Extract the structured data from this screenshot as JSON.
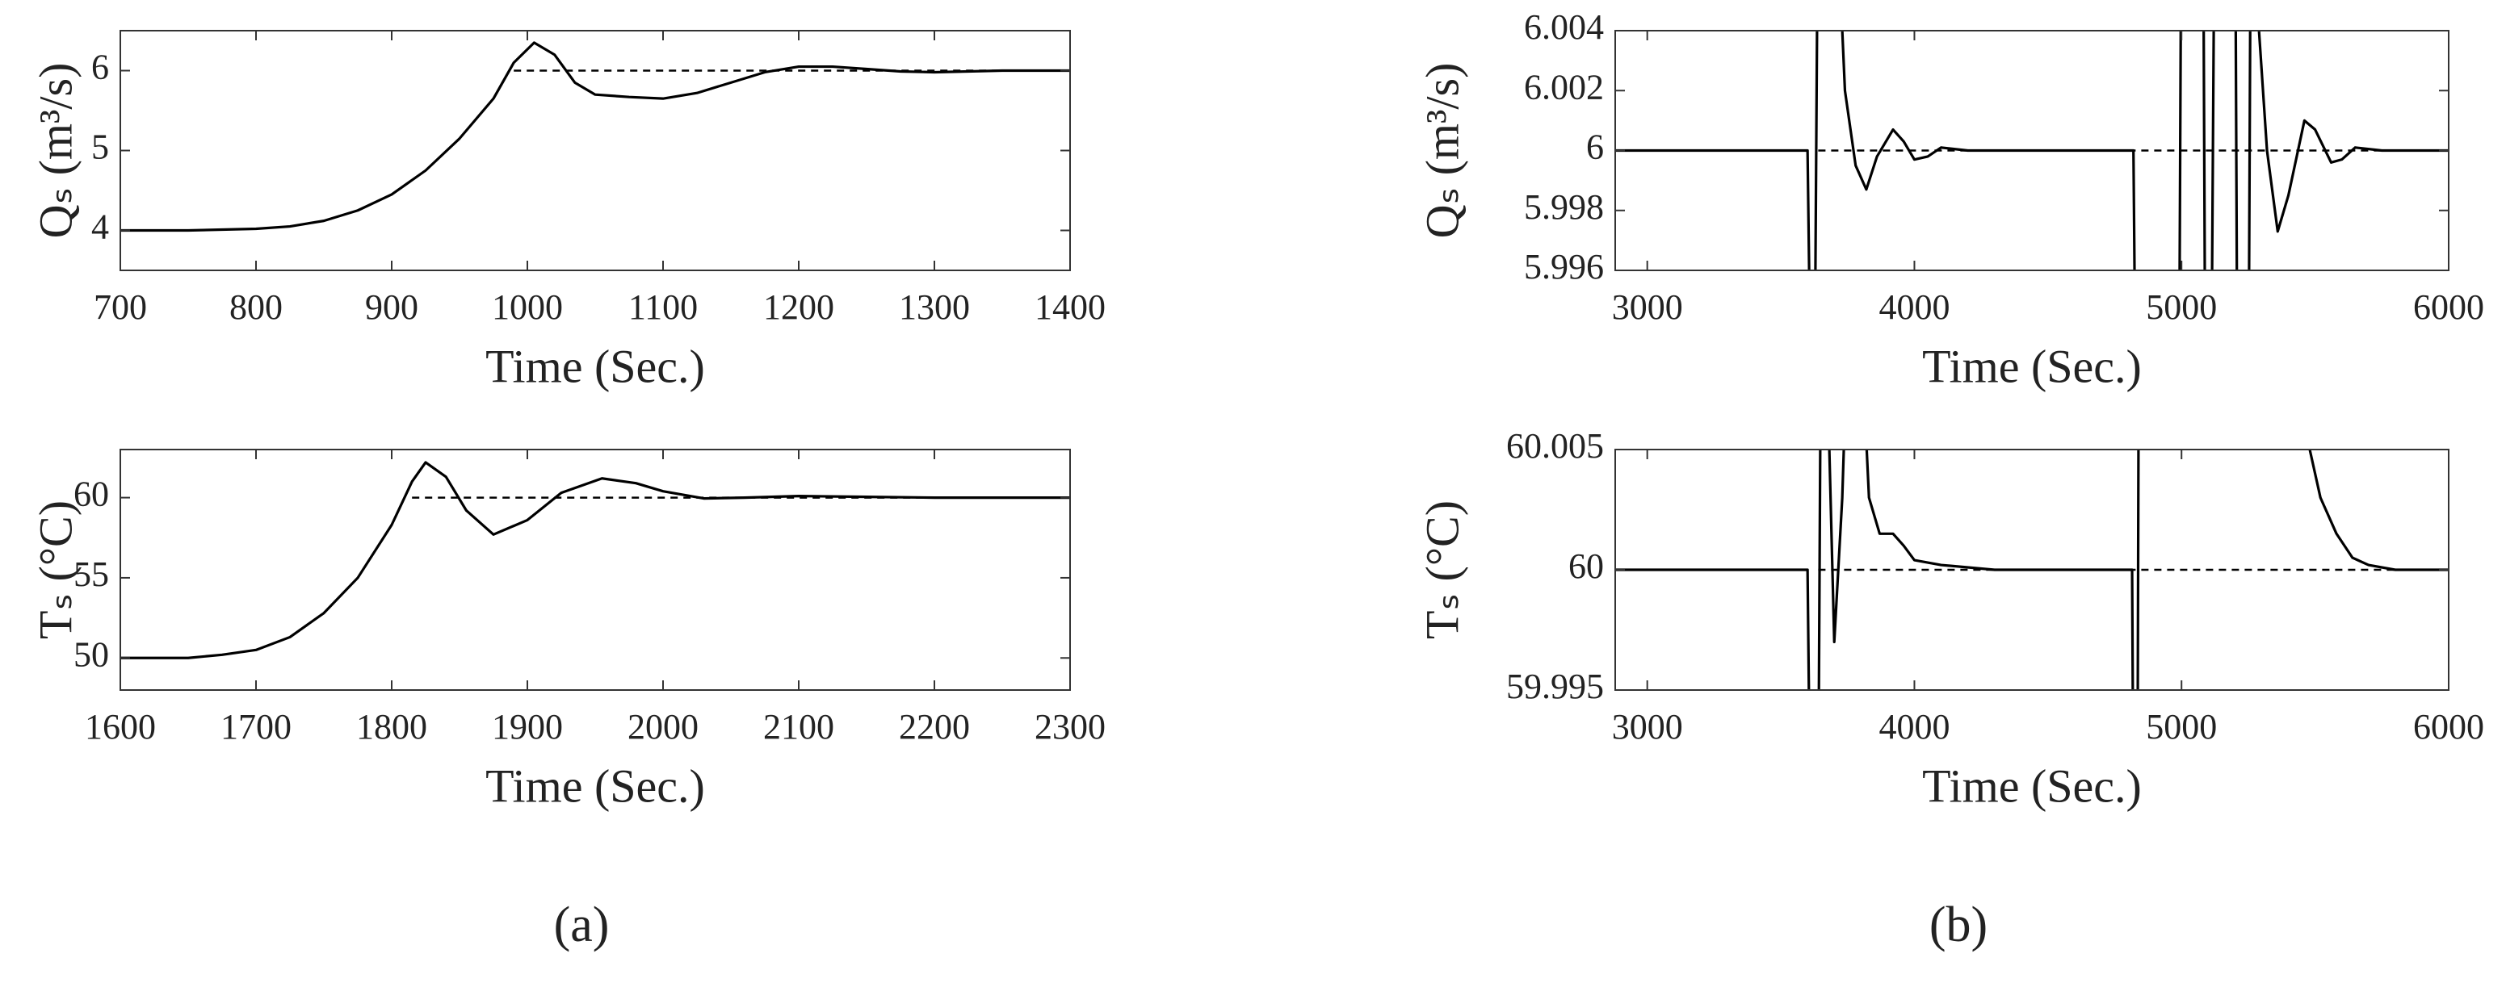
{
  "chart_data": [
    {
      "type": "line",
      "xlabel": "Time (Sec.)",
      "ylabel": "Qₛ (m³/s)",
      "x": [
        700,
        750,
        800,
        825,
        850,
        875,
        900,
        925,
        950,
        975,
        990,
        1005,
        1020,
        1035,
        1050,
        1075,
        1100,
        1125,
        1150,
        1175,
        1200,
        1225,
        1250,
        1275,
        1300,
        1325,
        1350,
        1400
      ],
      "xlim": [
        700,
        1400
      ],
      "xticks": [
        700,
        800,
        900,
        1000,
        1100,
        1200,
        1300,
        1400
      ],
      "ylim": [
        3.5,
        6.5
      ],
      "yticks": [
        4,
        5,
        6
      ],
      "grid": false,
      "series": [
        {
          "color": "#000000",
          "values": [
            4,
            4,
            4.02,
            4.05,
            4.12,
            4.25,
            4.45,
            4.75,
            5.15,
            5.65,
            6.1,
            6.35,
            6.2,
            5.85,
            5.7,
            5.67,
            5.65,
            5.72,
            5.85,
            5.98,
            6.05,
            6.05,
            6.02,
            5.99,
            5.98,
            5.99,
            6,
            6
          ]
        },
        {
          "color": "#000000",
          "dashed": true,
          "values": [
            null,
            null,
            null,
            null,
            null,
            null,
            null,
            null,
            null,
            null,
            6,
            6,
            6,
            6,
            6,
            6,
            6,
            6,
            6,
            6,
            6,
            6,
            6,
            6,
            6,
            6,
            6,
            6
          ]
        }
      ]
    },
    {
      "type": "line",
      "xlabel": "Time (Sec.)",
      "ylabel": "Tₛ (°C)",
      "x": [
        1600,
        1650,
        1675,
        1700,
        1725,
        1750,
        1775,
        1800,
        1815,
        1825,
        1840,
        1855,
        1875,
        1900,
        1925,
        1955,
        1980,
        2000,
        2030,
        2060,
        2100,
        2150,
        2200,
        2300
      ],
      "xlim": [
        1600,
        2300
      ],
      "xticks": [
        1600,
        1700,
        1800,
        1900,
        2000,
        2100,
        2200,
        2300
      ],
      "ylim": [
        48,
        63
      ],
      "yticks": [
        50,
        55,
        60
      ],
      "grid": false,
      "series": [
        {
          "color": "#000000",
          "values": [
            50,
            50,
            50.2,
            50.5,
            51.3,
            52.8,
            55,
            58.3,
            61,
            62.2,
            61.3,
            59.2,
            57.7,
            58.6,
            60.3,
            61.2,
            60.9,
            60.4,
            59.95,
            60,
            60.1,
            60.05,
            60,
            60
          ]
        },
        {
          "color": "#000000",
          "dashed": true,
          "values": [
            null,
            null,
            null,
            null,
            null,
            null,
            null,
            null,
            60,
            60,
            60,
            60,
            60,
            60,
            60,
            60,
            60,
            60,
            60,
            60,
            60,
            60,
            60,
            60
          ]
        }
      ]
    },
    {
      "type": "line",
      "xlabel": "Time (Sec.)",
      "ylabel": "Qₛ (m³/s)",
      "x": [
        2880,
        3600,
        3615,
        3625,
        3640,
        3700,
        3740,
        3780,
        3820,
        3860,
        3920,
        3960,
        4000,
        4050,
        4100,
        4200,
        4820,
        4830,
        4990,
        5000,
        5080,
        5090,
        5110,
        5125,
        5200,
        5210,
        5250,
        5260,
        5290,
        5320,
        5360,
        5400,
        5460,
        5500,
        5560,
        5600,
        5650,
        5750,
        6000
      ],
      "xlim": [
        2880,
        6000
      ],
      "xticks": [
        3000,
        4000,
        5000,
        6000
      ],
      "ylim": [
        5.996,
        6.004
      ],
      "yticks": [
        5.996,
        5.998,
        6,
        6.002,
        6.004
      ],
      "grid": false,
      "series": [
        {
          "color": "#000000",
          "values": [
            6,
            6,
            5.99,
            5.99,
            6.01,
            6.01,
            6.002,
            5.9995,
            5.9987,
            5.9998,
            6.0007,
            6.0003,
            5.9997,
            5.9998,
            6.0001,
            6,
            6,
            5.99,
            5.99,
            6.01,
            6.01,
            5.99,
            5.99,
            6.01,
            6.01,
            5.99,
            5.99,
            6.01,
            6.004,
            6,
            5.9973,
            5.9985,
            6.001,
            6.0007,
            5.9996,
            5.9997,
            6.0001,
            6,
            6
          ]
        },
        {
          "color": "#000000",
          "dashed": true,
          "values": [
            null,
            null,
            null,
            null,
            6,
            6,
            6,
            6,
            6,
            6,
            6,
            6,
            6,
            6,
            6,
            6,
            6,
            6,
            6,
            6,
            6,
            6,
            6,
            6,
            6,
            6,
            6,
            6,
            6,
            6,
            6,
            6,
            6,
            6,
            6,
            6,
            6,
            6,
            6
          ]
        }
      ]
    },
    {
      "type": "line",
      "xlabel": "Time (Sec.)",
      "ylabel": "Tₛ (°C)",
      "x": [
        2880,
        3600,
        3610,
        3640,
        3650,
        3670,
        3700,
        3730,
        3750,
        3800,
        3830,
        3870,
        3920,
        3960,
        4000,
        4100,
        4300,
        4815,
        4820,
        4835,
        4840,
        5460,
        5480,
        5520,
        5580,
        5640,
        5700,
        5800,
        6000
      ],
      "xlim": [
        2880,
        6000
      ],
      "xticks": [
        3000,
        4000,
        5000,
        6000
      ],
      "ylim": [
        59.995,
        60.005
      ],
      "yticks": [
        59.995,
        60,
        60.005
      ],
      "grid": false,
      "series": [
        {
          "color": "#000000",
          "values": [
            60,
            60,
            59.99,
            59.99,
            60.01,
            60.01,
            59.997,
            60.003,
            60.01,
            60.01,
            60.003,
            60.0015,
            60.0015,
            60.001,
            60.0004,
            60.0002,
            60,
            60,
            59.99,
            59.99,
            60.01,
            60.01,
            60.005,
            60.003,
            60.0015,
            60.0005,
            60.0002,
            60,
            60
          ]
        },
        {
          "color": "#000000",
          "dashed": true,
          "values": [
            null,
            null,
            null,
            60,
            60,
            60,
            60,
            60,
            60,
            60,
            60,
            60,
            60,
            60,
            60,
            60,
            60,
            60,
            60,
            60,
            60,
            60,
            60,
            60,
            60,
            60,
            60,
            60,
            60
          ]
        }
      ]
    }
  ],
  "captions": [
    "(a)",
    "(b)"
  ]
}
